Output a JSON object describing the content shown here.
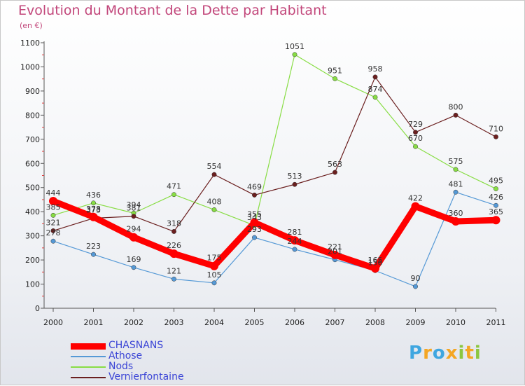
{
  "chart_data": {
    "type": "line",
    "title": "Evolution du Montant de la Dette par Habitant",
    "subtitle": "(en €)",
    "x": [
      "2000",
      "2001",
      "2002",
      "2003",
      "2004",
      "2005",
      "2006",
      "2007",
      "2008",
      "2009",
      "2010",
      "2011"
    ],
    "ylim": [
      0,
      1100
    ],
    "yticks": [
      0,
      100,
      200,
      300,
      400,
      500,
      600,
      700,
      800,
      900,
      1000,
      1100
    ],
    "grid": false,
    "legend_position": "bottom-left",
    "series": [
      {
        "name": "CHASNANS",
        "color": "#ff0000",
        "values": [
          444,
          378,
          294,
          226,
          175,
          355,
          281,
          221,
          165,
          422,
          360,
          365
        ]
      },
      {
        "name": "Athose",
        "color": "#5599d6",
        "values": [
          278,
          223,
          169,
          121,
          105,
          293,
          244,
          201,
          156,
          90,
          481,
          426
        ]
      },
      {
        "name": "Nods",
        "color": "#88dd44",
        "values": [
          385,
          436,
          394,
          471,
          408,
          343,
          1051,
          951,
          874,
          670,
          575,
          495
        ]
      },
      {
        "name": "Vernierfontaine",
        "color": "#6b1f1f",
        "values": [
          321,
          373,
          381,
          318,
          554,
          469,
          513,
          563,
          958,
          729,
          800,
          710
        ]
      }
    ]
  },
  "logo": {
    "letters": [
      "P",
      "r",
      "o",
      "x",
      "i",
      "t",
      "i"
    ],
    "colors": [
      "#3fa6e0",
      "#f4a623",
      "#3fa6e0",
      "#f4a623",
      "#8cc63f",
      "#f4a623",
      "#8cc63f"
    ]
  }
}
